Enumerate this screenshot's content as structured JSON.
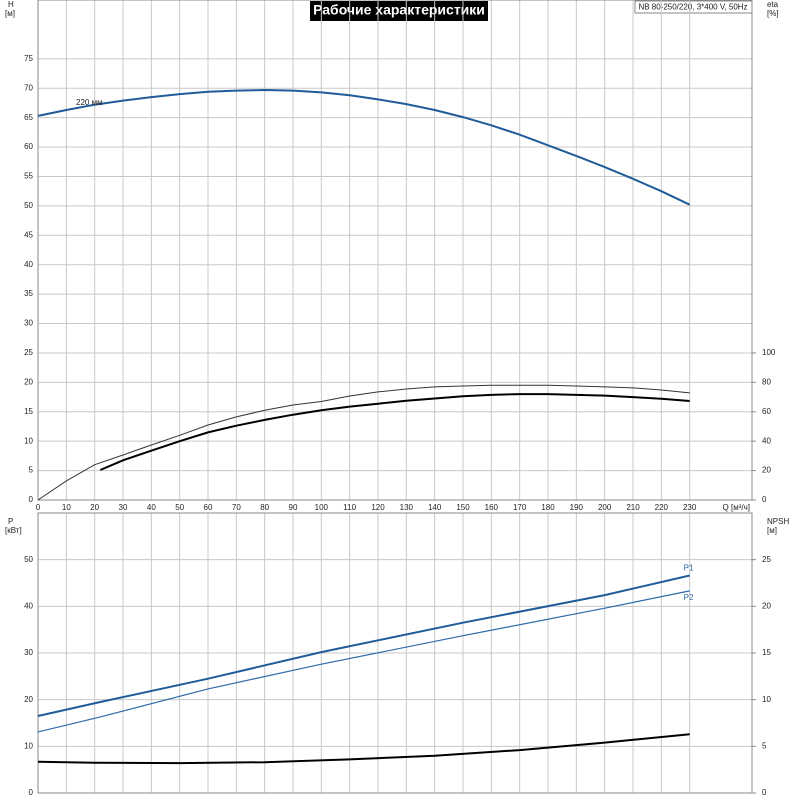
{
  "chart_data": [
    {
      "type": "line",
      "title": "Рабочие характеристики",
      "annotation": "NB 80-250/220, 3*400 V, 50Hz",
      "ylabel": "H",
      "yunit": "[м]",
      "y2label": "eta",
      "y2unit": "[%]",
      "xlabel": "Q [м³/ч]",
      "xlim": [
        0,
        252
      ],
      "xticks": [
        0,
        10,
        20,
        30,
        40,
        50,
        60,
        70,
        80,
        90,
        100,
        110,
        120,
        130,
        140,
        150,
        160,
        170,
        180,
        190,
        200,
        210,
        220,
        230
      ],
      "ylim": [
        0,
        85
      ],
      "yticks": [
        0,
        5,
        10,
        15,
        20,
        25,
        30,
        35,
        40,
        45,
        50,
        55,
        60,
        65,
        70,
        75
      ],
      "y2lim": [
        0,
        340
      ],
      "y2ticks": [
        0,
        20,
        40,
        60,
        80,
        100
      ],
      "grid": true,
      "series": [
        {
          "name": "220 мм",
          "color": "#1f5c99",
          "x": [
            0,
            10,
            20,
            30,
            40,
            50,
            60,
            70,
            80,
            90,
            100,
            110,
            120,
            130,
            140,
            150,
            160,
            170,
            180,
            190,
            200,
            210,
            220,
            230
          ],
          "values": [
            65.3,
            66.3,
            67.2,
            67.9,
            68.5,
            69.0,
            69.4,
            69.6,
            69.7,
            69.6,
            69.3,
            68.8,
            68.1,
            67.3,
            66.3,
            65.1,
            63.7,
            62.1,
            60.3,
            58.5,
            56.6,
            54.6,
            52.5,
            50.2
          ]
        },
        {
          "color": "#000000",
          "axis": "y2",
          "x": [
            22,
            30,
            40,
            50,
            60,
            70,
            80,
            90,
            100,
            110,
            120,
            130,
            140,
            150,
            160,
            170,
            180,
            190,
            200,
            210,
            220,
            230
          ],
          "values": [
            20.4,
            27,
            33.5,
            40,
            46,
            50.5,
            54.5,
            58,
            61,
            63.5,
            65.5,
            67.5,
            69,
            70.5,
            71.5,
            72,
            72,
            71.5,
            71,
            70,
            68.8,
            67.3
          ]
        },
        {
          "color": "#333333",
          "axis": "y2",
          "x": [
            0,
            10,
            20,
            30,
            40,
            50,
            60,
            70,
            80,
            90,
            100,
            110,
            120,
            130,
            140,
            150,
            160,
            170,
            180,
            190,
            200,
            210,
            220,
            230
          ],
          "values": [
            0,
            13,
            24,
            30.6,
            37.4,
            44,
            51,
            56.5,
            61,
            64.6,
            67,
            70.7,
            73.5,
            75.5,
            76.9,
            77.5,
            78,
            78,
            78,
            77.5,
            76.9,
            76.2,
            74.8,
            72.8
          ]
        }
      ]
    },
    {
      "type": "line",
      "ylabel": "P",
      "yunit": "[кВт]",
      "y2label": "NPSH",
      "y2unit": "[м]",
      "xlim": [
        0,
        252
      ],
      "ylim": [
        0,
        60
      ],
      "yticks": [
        0,
        10,
        20,
        30,
        40,
        50
      ],
      "y2lim": [
        0,
        30
      ],
      "y2ticks": [
        0,
        5,
        10,
        15,
        20,
        25
      ],
      "grid": true,
      "series": [
        {
          "name": "P1",
          "color": "#1f5c99",
          "x": [
            0,
            22,
            60,
            100,
            150,
            200,
            230
          ],
          "values": [
            16.5,
            19.5,
            24.5,
            30.2,
            36.5,
            42.4,
            46.6
          ]
        },
        {
          "name": "P2",
          "color": "#2e6aa8",
          "x": [
            0,
            22,
            60,
            100,
            150,
            200,
            230
          ],
          "values": [
            13.1,
            16.3,
            22.3,
            27.6,
            33.7,
            39.6,
            43.3
          ]
        },
        {
          "color": "#000000",
          "axis": "y2",
          "x": [
            0,
            20,
            50,
            80,
            110,
            140,
            170,
            200,
            230
          ],
          "values": [
            3.35,
            3.25,
            3.2,
            3.3,
            3.6,
            4.0,
            4.6,
            5.4,
            6.3
          ]
        }
      ]
    }
  ]
}
